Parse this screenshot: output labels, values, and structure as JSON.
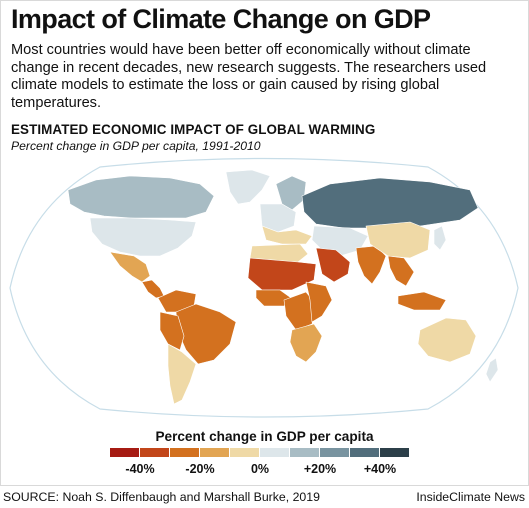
{
  "header": {
    "title": "Impact of Climate Change on GDP",
    "lede": "Most countries would have been better off economically without climate change in recent decades, new research suggests. The researchers used climate models to estimate the loss or gain caused by rising global temperatures."
  },
  "map": {
    "heading": "ESTIMATED ECONOMIC IMPACT OF GLOBAL WARMING",
    "subheading": "Percent change in GDP per capita, 1991-2010",
    "projection": "world-robinson",
    "regions": [
      {
        "name": "canada",
        "value": 15
      },
      {
        "name": "greenland",
        "value": 5
      },
      {
        "name": "united-states",
        "value": 0
      },
      {
        "name": "mexico",
        "value": -12
      },
      {
        "name": "central-america",
        "value": -22
      },
      {
        "name": "colombia-venezuela",
        "value": -28
      },
      {
        "name": "brazil",
        "value": -25
      },
      {
        "name": "peru-bolivia",
        "value": -22
      },
      {
        "name": "southern-cone",
        "value": -5
      },
      {
        "name": "northern-europe",
        "value": 15
      },
      {
        "name": "western-europe",
        "value": 2
      },
      {
        "name": "southern-europe",
        "value": -8
      },
      {
        "name": "russia",
        "value": 30
      },
      {
        "name": "central-asia",
        "value": 0
      },
      {
        "name": "north-africa",
        "value": -8
      },
      {
        "name": "sahel",
        "value": -40
      },
      {
        "name": "arabian-peninsula",
        "value": -38
      },
      {
        "name": "west-africa",
        "value": -30
      },
      {
        "name": "central-africa",
        "value": -28
      },
      {
        "name": "east-africa",
        "value": -22
      },
      {
        "name": "southern-africa",
        "value": -15
      },
      {
        "name": "india",
        "value": -30
      },
      {
        "name": "china",
        "value": -5
      },
      {
        "name": "southeast-asia",
        "value": -25
      },
      {
        "name": "indonesia",
        "value": -30
      },
      {
        "name": "japan",
        "value": 0
      },
      {
        "name": "australia",
        "value": -2
      },
      {
        "name": "new-zealand",
        "value": 0
      }
    ]
  },
  "legend": {
    "title": "Percent change in GDP per capita",
    "colors": [
      "#a61b13",
      "#c2461a",
      "#d3711f",
      "#e2a553",
      "#efd9a6",
      "#dde6ea",
      "#a8bcc4",
      "#7994a0",
      "#526e7c",
      "#2c3f49"
    ],
    "labels": [
      "-40%",
      "-20%",
      "0%",
      "+20%",
      "+40%"
    ]
  },
  "footer": {
    "source": "SOURCE: Noah S. Diffenbaugh and Marshall Burke, 2019",
    "credit": "InsideClimate News"
  }
}
